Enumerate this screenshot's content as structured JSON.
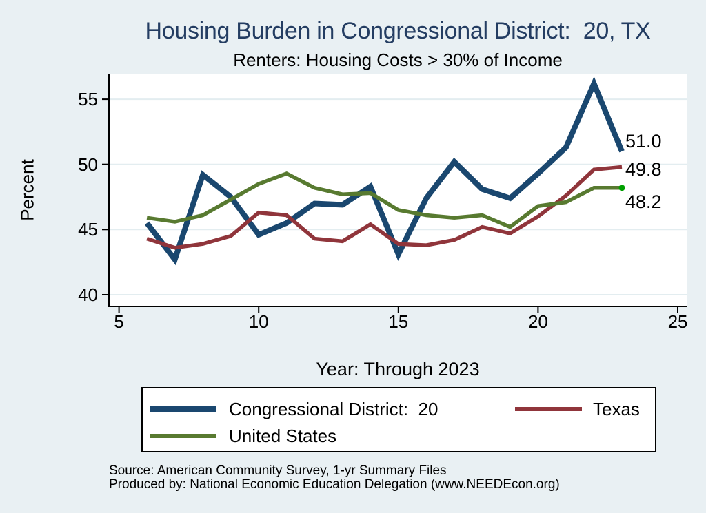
{
  "title": "Housing Burden in Congressional District:  20, TX",
  "subtitle": "Renters: Housing Costs > 30% of Income",
  "colors": {
    "background": "#e9f0f3",
    "plot_background": "#ffffff",
    "grid": "#e3edf0",
    "axis": "#000000",
    "title_text": "#243d62",
    "district": "#1a476f",
    "texas": "#90353b",
    "us": "#587a30",
    "end_dot": "#00a000"
  },
  "chart_data": {
    "type": "line",
    "title": "Housing Burden in Congressional District:  20, TX",
    "subtitle": "Renters: Housing Costs > 30% of Income",
    "xlabel": "Year: Through 2023",
    "ylabel": "Percent",
    "grid": true,
    "legend_position": "bottom",
    "x_ticks": [
      5,
      10,
      15,
      20,
      25
    ],
    "y_ticks": [
      40,
      45,
      50,
      55
    ],
    "xlim": [
      4.64,
      25.32
    ],
    "ylim": [
      39.1,
      56.96
    ],
    "x": [
      6,
      7,
      8,
      9,
      10,
      11,
      12,
      13,
      14,
      15,
      16,
      17,
      18,
      19,
      20,
      21,
      22,
      23
    ],
    "series": [
      {
        "name": "Congressional District:  20",
        "color_key": "district",
        "end_label": "51.0",
        "end_marker": false,
        "values": [
          45.5,
          42.7,
          49.2,
          47.5,
          44.6,
          45.5,
          47.0,
          46.9,
          48.3,
          43.1,
          47.4,
          50.2,
          48.1,
          47.4,
          49.3,
          51.3,
          56.2,
          51.0
        ]
      },
      {
        "name": "Texas",
        "color_key": "texas",
        "end_label": "49.8",
        "end_marker": false,
        "values": [
          44.3,
          43.6,
          43.9,
          44.5,
          46.3,
          46.1,
          44.3,
          44.1,
          45.4,
          43.9,
          43.8,
          44.2,
          45.2,
          44.7,
          46.0,
          47.6,
          49.6,
          49.8
        ]
      },
      {
        "name": "United States",
        "color_key": "us",
        "end_label": "48.2",
        "end_marker": true,
        "values": [
          45.9,
          45.6,
          46.1,
          47.3,
          48.5,
          49.3,
          48.2,
          47.7,
          47.8,
          46.5,
          46.1,
          45.9,
          46.1,
          45.2,
          46.8,
          47.1,
          48.2,
          48.2
        ]
      }
    ]
  },
  "legend": {
    "items": [
      {
        "label": "Congressional District:  20"
      },
      {
        "label": "Texas"
      },
      {
        "label": "United States"
      }
    ]
  },
  "source_line1": "Source: American Community Survey, 1-yr Summary Files",
  "source_line2": "Produced by: National Economic Education Delegation (www.NEEDEcon.org)"
}
